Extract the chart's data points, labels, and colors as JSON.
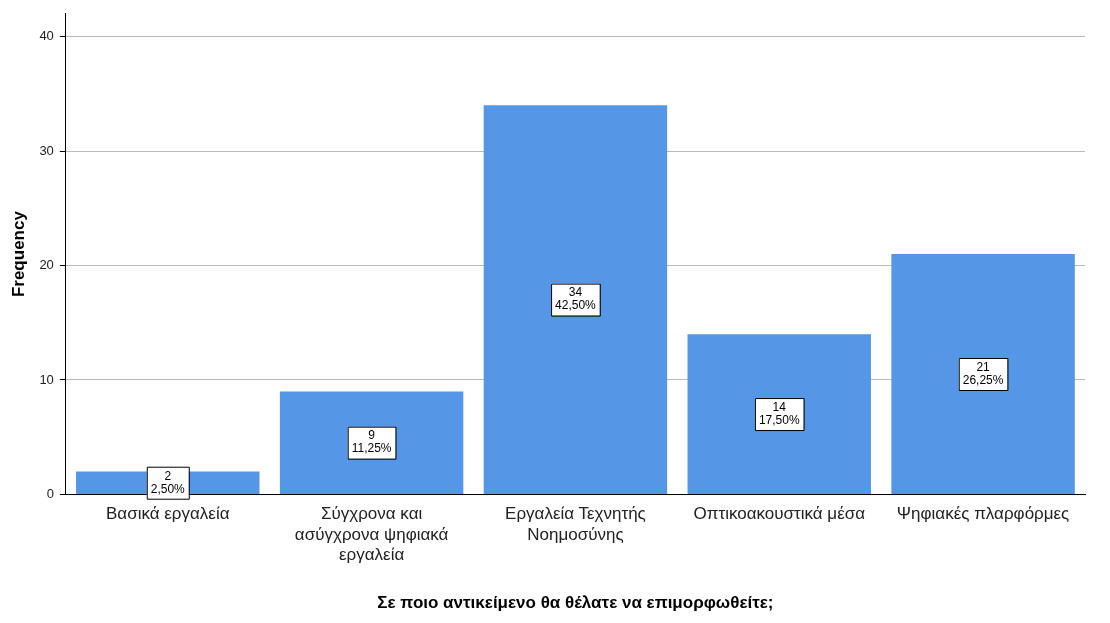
{
  "chart_data": {
    "type": "bar",
    "xlabel": "Σε ποιο αντικείμενο θα θέλατε να επιμορφωθείτε;",
    "ylabel": "Frequency",
    "categories": [
      "Βασικά εργαλεία",
      "Σύγχρονα και ασύγχρονα ψηφιακά εργαλεία",
      "Εργαλεία Τεχνητής Νοημοσύνης",
      "Οπτικοακουστικά μέσα",
      "Ψηφιακές πλαρφόρμες"
    ],
    "values": [
      2,
      9,
      34,
      14,
      21
    ],
    "color": "#5596e6",
    "value_labels": [
      "2\n2,50%",
      "9\n11,25%",
      "34\n42,50%",
      "14\n17,50%",
      "21\n26,25%"
    ],
    "ylim": [
      0,
      42
    ],
    "yticks": [
      0,
      10,
      20,
      30,
      40
    ],
    "grid": "y",
    "legend": false
  }
}
